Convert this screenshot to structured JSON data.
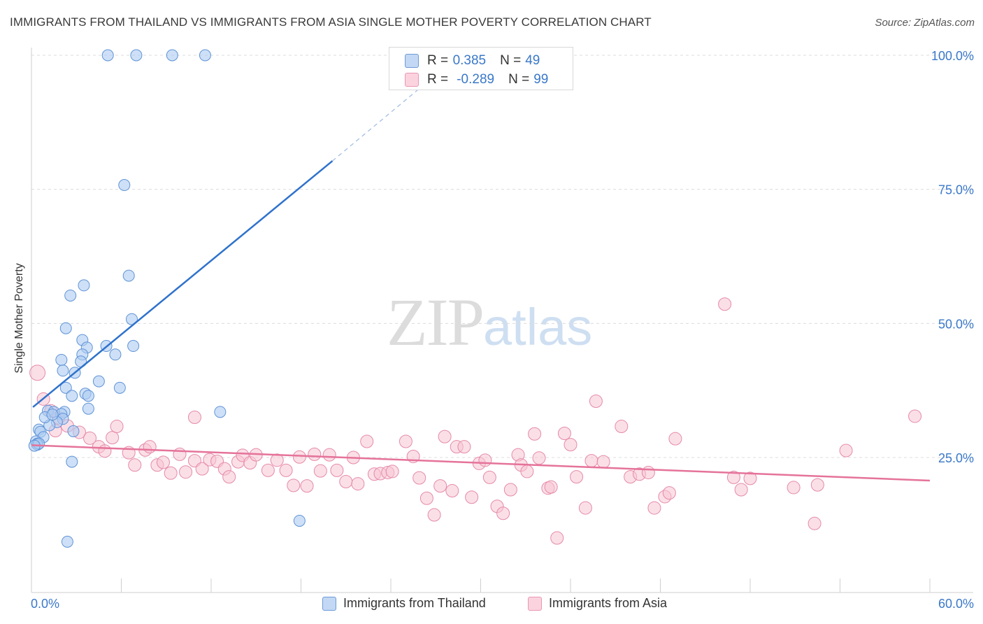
{
  "header": {
    "title": "IMMIGRANTS FROM THAILAND VS IMMIGRANTS FROM ASIA SINGLE MOTHER POVERTY CORRELATION CHART",
    "source": "Source: ZipAtlas.com"
  },
  "watermark": {
    "zip": "ZIP",
    "atlas": "atlas"
  },
  "stats": {
    "thailand": {
      "r_label": "R =",
      "r_value": "0.385",
      "n_label": "N =",
      "n_value": "49"
    },
    "asia": {
      "r_label": "R =",
      "r_value": "-0.289",
      "n_label": "N =",
      "n_value": "99"
    }
  },
  "legend": {
    "thailand": "Immigrants from Thailand",
    "asia": "Immigrants from Asia"
  },
  "colors": {
    "thailand_fill": "#aecbf1",
    "thailand_stroke": "#5f93d6",
    "thailand_line": "#2f72cc",
    "asia_fill": "#f7c4d4",
    "asia_stroke": "#e58aa8",
    "asia_line": "#e5739a",
    "axis_tick_text": "#3a78c9",
    "grid": "#dcdcdc"
  },
  "chart_data": {
    "type": "scatter",
    "title": "IMMIGRANTS FROM THAILAND VS IMMIGRANTS FROM ASIA SINGLE MOTHER POVERTY CORRELATION CHART",
    "xlabel": "",
    "ylabel": "Single Mother Poverty",
    "xlim": [
      0,
      60
    ],
    "ylim": [
      0,
      105
    ],
    "x_tick_labels": [
      "0.0%",
      "60.0%"
    ],
    "y_ticks": [
      25,
      50,
      75,
      100
    ],
    "y_tick_labels": [
      "25.0%",
      "50.0%",
      "75.0%",
      "100.0%"
    ],
    "grid": true,
    "legend_position": "bottom",
    "series": [
      {
        "name": "Immigrants from Thailand",
        "points": [
          [
            5.1,
            100
          ],
          [
            7.0,
            100
          ],
          [
            9.4,
            100
          ],
          [
            11.6,
            100
          ],
          [
            6.2,
            75.8
          ],
          [
            6.5,
            58.9
          ],
          [
            3.5,
            57.1
          ],
          [
            2.6,
            55.2
          ],
          [
            6.7,
            50.8
          ],
          [
            2.3,
            49.1
          ],
          [
            3.4,
            46.9
          ],
          [
            3.7,
            45.5
          ],
          [
            5.0,
            45.8
          ],
          [
            6.8,
            45.8
          ],
          [
            3.4,
            44.2
          ],
          [
            5.6,
            44.2
          ],
          [
            2.0,
            43.2
          ],
          [
            3.3,
            42.9
          ],
          [
            2.1,
            41.2
          ],
          [
            2.9,
            40.8
          ],
          [
            4.5,
            39.2
          ],
          [
            5.9,
            38.0
          ],
          [
            2.3,
            38.0
          ],
          [
            3.6,
            36.9
          ],
          [
            3.8,
            36.5
          ],
          [
            2.7,
            36.5
          ],
          [
            3.8,
            34.1
          ],
          [
            12.6,
            33.5
          ],
          [
            1.1,
            33.7
          ],
          [
            2.2,
            33.5
          ],
          [
            1.5,
            33.5
          ],
          [
            2.0,
            33.1
          ],
          [
            2.1,
            32.2
          ],
          [
            1.7,
            31.6
          ],
          [
            1.2,
            31.0
          ],
          [
            0.5,
            30.2
          ],
          [
            0.6,
            29.8
          ],
          [
            0.8,
            28.8
          ],
          [
            0.3,
            28.0
          ],
          [
            0.4,
            27.6
          ],
          [
            0.4,
            27.4
          ],
          [
            0.5,
            27.6
          ],
          [
            0.2,
            27.2
          ],
          [
            2.8,
            29.9
          ],
          [
            2.7,
            24.2
          ],
          [
            17.9,
            13.2
          ],
          [
            2.4,
            9.3
          ],
          [
            0.9,
            32.5
          ],
          [
            1.4,
            33.0
          ]
        ],
        "trend": {
          "x0": 0.1,
          "y0": 34.4,
          "x1": 20.1,
          "y1": 80.3,
          "dashed_to_x": 27.5,
          "dashed_to_y": 97.5
        }
      },
      {
        "name": "Immigrants from Asia",
        "points": [
          [
            0.4,
            40.8
          ],
          [
            0.8,
            35.9
          ],
          [
            1.3,
            33.7
          ],
          [
            1.8,
            32.4
          ],
          [
            2.4,
            30.9
          ],
          [
            3.2,
            29.7
          ],
          [
            3.9,
            28.6
          ],
          [
            4.5,
            27.0
          ],
          [
            4.9,
            26.2
          ],
          [
            5.4,
            28.7
          ],
          [
            5.7,
            30.8
          ],
          [
            6.5,
            25.9
          ],
          [
            6.9,
            23.6
          ],
          [
            7.6,
            26.4
          ],
          [
            7.9,
            27.0
          ],
          [
            8.4,
            23.6
          ],
          [
            8.8,
            24.1
          ],
          [
            9.3,
            22.1
          ],
          [
            9.9,
            25.6
          ],
          [
            10.3,
            22.3
          ],
          [
            10.9,
            24.4
          ],
          [
            11.4,
            22.9
          ],
          [
            11.9,
            24.6
          ],
          [
            12.4,
            24.3
          ],
          [
            12.9,
            22.9
          ],
          [
            13.2,
            21.4
          ],
          [
            13.8,
            24.2
          ],
          [
            14.1,
            25.4
          ],
          [
            14.6,
            24.0
          ],
          [
            15.0,
            25.5
          ],
          [
            10.9,
            32.5
          ],
          [
            15.8,
            22.6
          ],
          [
            16.4,
            24.5
          ],
          [
            17.0,
            22.6
          ],
          [
            17.5,
            19.8
          ],
          [
            17.9,
            25.1
          ],
          [
            18.4,
            19.7
          ],
          [
            18.9,
            25.6
          ],
          [
            19.3,
            22.5
          ],
          [
            19.9,
            25.5
          ],
          [
            20.4,
            22.6
          ],
          [
            21.0,
            20.5
          ],
          [
            21.5,
            25.0
          ],
          [
            21.8,
            20.1
          ],
          [
            22.4,
            28.0
          ],
          [
            22.9,
            21.9
          ],
          [
            23.3,
            22.0
          ],
          [
            23.8,
            22.2
          ],
          [
            24.1,
            22.4
          ],
          [
            25.0,
            28.0
          ],
          [
            25.5,
            25.2
          ],
          [
            25.9,
            21.2
          ],
          [
            26.4,
            17.4
          ],
          [
            26.9,
            14.3
          ],
          [
            27.3,
            19.7
          ],
          [
            27.6,
            28.9
          ],
          [
            28.1,
            18.8
          ],
          [
            28.4,
            27.0
          ],
          [
            28.9,
            27.0
          ],
          [
            29.4,
            17.6
          ],
          [
            29.9,
            23.9
          ],
          [
            30.3,
            24.5
          ],
          [
            30.6,
            21.3
          ],
          [
            31.1,
            15.9
          ],
          [
            31.5,
            14.6
          ],
          [
            32.0,
            19.0
          ],
          [
            32.5,
            25.5
          ],
          [
            32.7,
            23.6
          ],
          [
            33.1,
            22.4
          ],
          [
            33.6,
            29.4
          ],
          [
            33.9,
            24.9
          ],
          [
            34.5,
            19.3
          ],
          [
            34.7,
            19.5
          ],
          [
            35.1,
            10.0
          ],
          [
            35.6,
            29.5
          ],
          [
            36.0,
            27.4
          ],
          [
            36.4,
            21.4
          ],
          [
            37.0,
            15.6
          ],
          [
            37.4,
            24.4
          ],
          [
            37.7,
            35.5
          ],
          [
            38.2,
            24.2
          ],
          [
            39.4,
            30.8
          ],
          [
            40.0,
            21.4
          ],
          [
            40.6,
            21.9
          ],
          [
            41.2,
            22.2
          ],
          [
            41.6,
            15.6
          ],
          [
            42.3,
            17.7
          ],
          [
            42.6,
            18.4
          ],
          [
            43.0,
            28.5
          ],
          [
            46.3,
            53.6
          ],
          [
            46.9,
            21.3
          ],
          [
            47.4,
            19.0
          ],
          [
            48.0,
            21.1
          ],
          [
            50.9,
            19.4
          ],
          [
            52.5,
            19.9
          ],
          [
            52.3,
            12.7
          ],
          [
            54.4,
            26.3
          ],
          [
            59.0,
            32.7
          ],
          [
            1.6,
            30.0
          ]
        ],
        "trend": {
          "x0": 0.0,
          "y0": 27.3,
          "x1": 60.0,
          "y1": 20.7
        }
      }
    ]
  }
}
